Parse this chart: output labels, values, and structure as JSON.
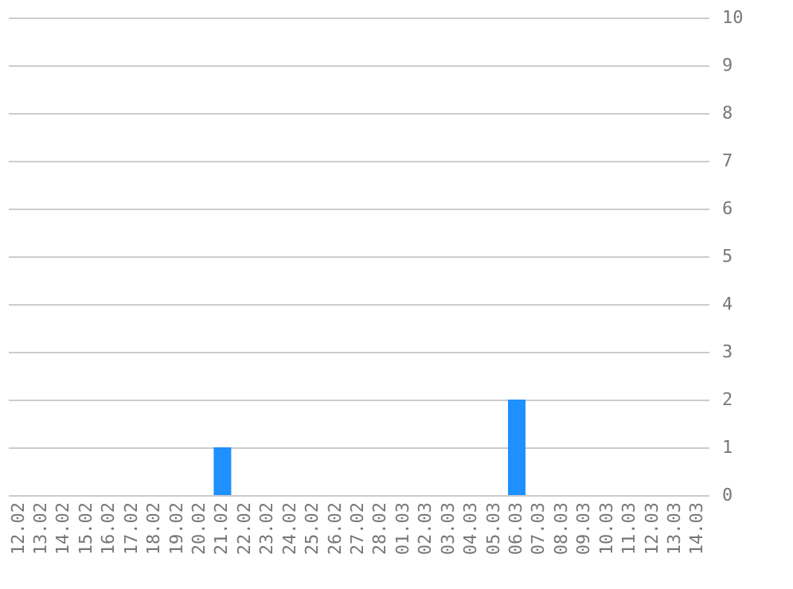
{
  "chart_data": {
    "type": "bar",
    "categories": [
      "12.02",
      "13.02",
      "14.02",
      "15.02",
      "16.02",
      "17.02",
      "18.02",
      "19.02",
      "20.02",
      "21.02",
      "22.02",
      "23.02",
      "24.02",
      "25.02",
      "26.02",
      "27.02",
      "28.02",
      "01.03",
      "02.03",
      "03.03",
      "04.03",
      "05.03",
      "06.03",
      "07.03",
      "08.03",
      "09.03",
      "10.03",
      "11.03",
      "12.03",
      "13.03",
      "14.03"
    ],
    "values": [
      0,
      0,
      0,
      0,
      0,
      0,
      0,
      0,
      0,
      1,
      0,
      0,
      0,
      0,
      0,
      0,
      0,
      0,
      0,
      0,
      0,
      0,
      2,
      0,
      0,
      0,
      0,
      0,
      0,
      0,
      0
    ],
    "color": "#1e90ff",
    "ylim": [
      0,
      10
    ],
    "yticks": [
      0,
      1,
      2,
      3,
      4,
      5,
      6,
      7,
      8,
      9,
      10
    ],
    "grid": "y"
  }
}
